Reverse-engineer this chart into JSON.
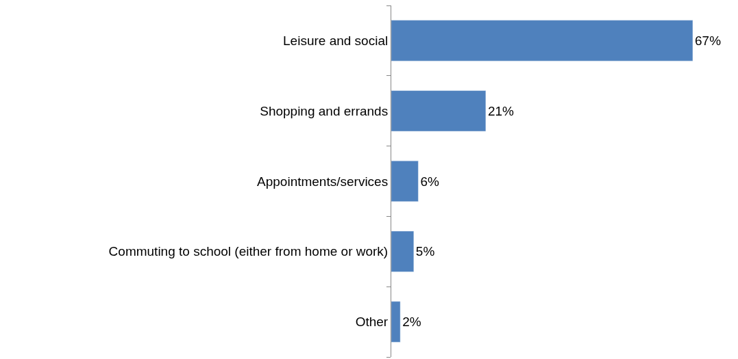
{
  "chart_data": {
    "type": "bar",
    "orientation": "horizontal",
    "categories": [
      "Leisure and social",
      "Shopping and errands",
      "Appointments/services",
      "Commuting to school (either from home or work)",
      "Other"
    ],
    "values": [
      67,
      21,
      6,
      5,
      2
    ],
    "value_labels": [
      "67%",
      "21%",
      "6%",
      "5%",
      "2%"
    ],
    "color": "#4f81bd"
  }
}
